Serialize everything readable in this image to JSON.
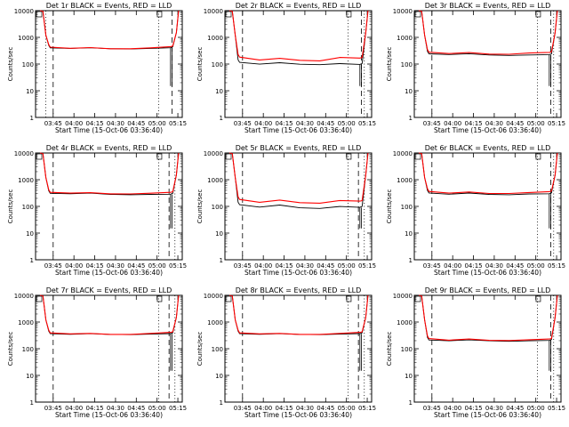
{
  "chart_data": [
    {
      "type": "line",
      "title": "Det 1r BLACK = Events, RED = LLD",
      "xlabel": "Start Time (15-Oct-06 03:36:40)",
      "ylabel": "Counts/sec",
      "x_ticks": [
        "03:45",
        "04:00",
        "04:15",
        "04:30",
        "04:45",
        "05:00",
        "05:15"
      ],
      "y_ticks": [
        "1",
        "10",
        "100",
        "1000",
        "10000"
      ],
      "ylim": [
        1,
        10000
      ],
      "yscale": "log",
      "series": [
        {
          "color": "#000000",
          "plateau": [
            420,
            390,
            400,
            360,
            350,
            370,
            400
          ]
        },
        {
          "color": "#ff0000",
          "plateau": [
            450,
            410,
            430,
            380,
            370,
            390,
            430
          ]
        }
      ]
    },
    {
      "type": "line",
      "title": "Det 2r BLACK = Events, RED = LLD",
      "xlabel": "Start Time (15-Oct-06 03:36:40)",
      "ylabel": "Counts/sec",
      "x_ticks": [
        "03:45",
        "04:00",
        "04:15",
        "04:30",
        "04:45",
        "05:00",
        "05:15"
      ],
      "y_ticks": [
        "1",
        "10",
        "100",
        "1000",
        "10000"
      ],
      "ylim": [
        1,
        10000
      ],
      "yscale": "log",
      "series": [
        {
          "color": "#000000",
          "plateau": [
            120,
            100,
            110,
            95,
            90,
            100,
            95
          ]
        },
        {
          "color": "#ff0000",
          "plateau": [
            190,
            150,
            170,
            140,
            130,
            170,
            160
          ]
        }
      ]
    },
    {
      "type": "line",
      "title": "Det 3r BLACK = Events, RED = LLD",
      "xlabel": "Start Time (15-Oct-06 03:36:40)",
      "ylabel": "Counts/sec",
      "x_ticks": [
        "03:45",
        "04:00",
        "04:15",
        "04:30",
        "04:45",
        "05:00",
        "05:15"
      ],
      "y_ticks": [
        "1",
        "10",
        "100",
        "1000",
        "10000"
      ],
      "ylim": [
        1,
        10000
      ],
      "yscale": "log",
      "series": [
        {
          "color": "#000000",
          "plateau": [
            250,
            230,
            240,
            210,
            200,
            210,
            220
          ]
        },
        {
          "color": "#ff0000",
          "plateau": [
            290,
            260,
            280,
            240,
            230,
            250,
            260
          ]
        }
      ]
    },
    {
      "type": "line",
      "title": "Det 4r BLACK = Events, RED = LLD",
      "xlabel": "Start Time (15-Oct-06 03:36:40)",
      "ylabel": "Counts/sec",
      "x_ticks": [
        "03:45",
        "04:00",
        "04:15",
        "04:30",
        "04:45",
        "05:00",
        "05:15"
      ],
      "y_ticks": [
        "1",
        "10",
        "100",
        "1000",
        "10000"
      ],
      "ylim": [
        1,
        10000
      ],
      "yscale": "log",
      "series": [
        {
          "color": "#000000",
          "plateau": [
            320,
            300,
            310,
            270,
            260,
            270,
            280
          ]
        },
        {
          "color": "#ff0000",
          "plateau": [
            350,
            330,
            340,
            300,
            290,
            300,
            320
          ]
        }
      ]
    },
    {
      "type": "line",
      "title": "Det 5r BLACK = Events, RED = LLD",
      "xlabel": "Start Time (15-Oct-06 03:36:40)",
      "ylabel": "Counts/sec",
      "x_ticks": [
        "03:45",
        "04:00",
        "04:15",
        "04:30",
        "04:45",
        "05:00",
        "05:15"
      ],
      "y_ticks": [
        "1",
        "10",
        "100",
        "1000",
        "10000"
      ],
      "ylim": [
        1,
        10000
      ],
      "yscale": "log",
      "series": [
        {
          "color": "#000000",
          "plateau": [
            120,
            95,
            110,
            85,
            80,
            95,
            90
          ]
        },
        {
          "color": "#ff0000",
          "plateau": [
            190,
            150,
            180,
            140,
            130,
            160,
            150
          ]
        }
      ]
    },
    {
      "type": "line",
      "title": "Det 6r BLACK = Events, RED = LLD",
      "xlabel": "Start Time (15-Oct-06 03:36:40)",
      "ylabel": "Counts/sec",
      "x_ticks": [
        "03:45",
        "04:00",
        "04:15",
        "04:30",
        "04:45",
        "05:00",
        "05:15"
      ],
      "y_ticks": [
        "1",
        "10",
        "100",
        "1000",
        "10000"
      ],
      "ylim": [
        1,
        10000
      ],
      "yscale": "log",
      "series": [
        {
          "color": "#000000",
          "plateau": [
            330,
            290,
            310,
            270,
            260,
            280,
            290
          ]
        },
        {
          "color": "#ff0000",
          "plateau": [
            380,
            330,
            360,
            310,
            300,
            320,
            340
          ]
        }
      ]
    },
    {
      "type": "line",
      "title": "Det 7r BLACK = Events, RED = LLD",
      "xlabel": "Start Time (15-Oct-06 03:36:40)",
      "ylabel": "Counts/sec",
      "x_ticks": [
        "03:45",
        "04:00",
        "04:15",
        "04:30",
        "04:45",
        "05:00",
        "05:15"
      ],
      "y_ticks": [
        "1",
        "10",
        "100",
        "1000",
        "10000"
      ],
      "ylim": [
        1,
        10000
      ],
      "yscale": "log",
      "series": [
        {
          "color": "#000000",
          "plateau": [
            380,
            350,
            360,
            330,
            320,
            340,
            360
          ]
        },
        {
          "color": "#ff0000",
          "plateau": [
            410,
            380,
            390,
            350,
            340,
            360,
            390
          ]
        }
      ]
    },
    {
      "type": "line",
      "title": "Det 8r BLACK = Events, RED = LLD",
      "xlabel": "Start Time (15-Oct-06 03:36:40)",
      "ylabel": "Counts/sec",
      "x_ticks": [
        "03:45",
        "04:00",
        "04:15",
        "04:30",
        "04:45",
        "05:00",
        "05:15"
      ],
      "y_ticks": [
        "1",
        "10",
        "100",
        "1000",
        "10000"
      ],
      "ylim": [
        1,
        10000
      ],
      "yscale": "log",
      "series": [
        {
          "color": "#000000",
          "plateau": [
            380,
            350,
            360,
            330,
            320,
            340,
            360
          ]
        },
        {
          "color": "#ff0000",
          "plateau": [
            410,
            380,
            390,
            350,
            340,
            360,
            390
          ]
        }
      ]
    },
    {
      "type": "line",
      "title": "Det 9r BLACK = Events, RED = LLD",
      "xlabel": "Start Time (15-Oct-06 03:36:40)",
      "ylabel": "Counts/sec",
      "x_ticks": [
        "03:45",
        "04:00",
        "04:15",
        "04:30",
        "04:45",
        "05:00",
        "05:15"
      ],
      "y_ticks": [
        "1",
        "10",
        "100",
        "1000",
        "10000"
      ],
      "ylim": [
        1,
        10000
      ],
      "yscale": "log",
      "series": [
        {
          "color": "#000000",
          "plateau": [
            220,
            200,
            210,
            190,
            180,
            190,
            200
          ]
        },
        {
          "color": "#ff0000",
          "plateau": [
            250,
            220,
            240,
            210,
            200,
            210,
            220
          ]
        }
      ]
    }
  ]
}
